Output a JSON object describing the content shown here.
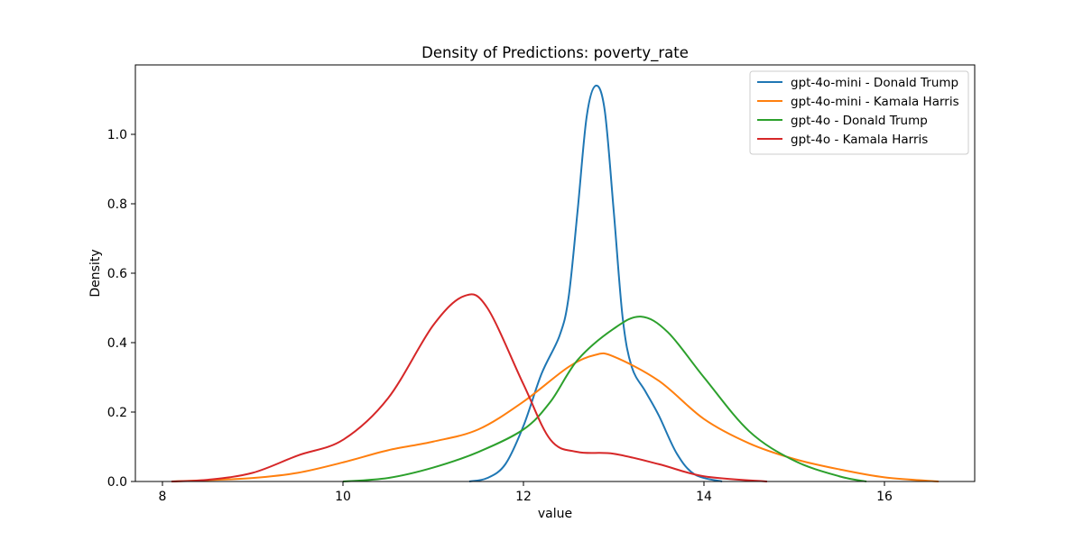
{
  "chart_data": {
    "type": "line",
    "title": "Density of Predictions: poverty_rate",
    "xlabel": "value",
    "ylabel": "Density",
    "xlim": [
      7.7,
      17.0
    ],
    "ylim": [
      0,
      1.2
    ],
    "xticks": [
      8,
      10,
      12,
      14,
      16
    ],
    "yticks": [
      0.0,
      0.2,
      0.4,
      0.6,
      0.8,
      1.0
    ],
    "xtick_labels": [
      "8",
      "10",
      "12",
      "14",
      "16"
    ],
    "ytick_labels": [
      "0.0",
      "0.2",
      "0.4",
      "0.6",
      "0.8",
      "1.0"
    ],
    "grid": false,
    "legend_position": "top-right",
    "series": [
      {
        "name": "gpt-4o-mini - Donald Trump",
        "color": "#1f77b4",
        "points": [
          [
            11.4,
            0.0
          ],
          [
            11.6,
            0.01
          ],
          [
            11.8,
            0.05
          ],
          [
            12.0,
            0.16
          ],
          [
            12.2,
            0.31
          ],
          [
            12.4,
            0.42
          ],
          [
            12.5,
            0.53
          ],
          [
            12.6,
            0.78
          ],
          [
            12.7,
            1.05
          ],
          [
            12.8,
            1.14
          ],
          [
            12.9,
            1.07
          ],
          [
            13.0,
            0.78
          ],
          [
            13.1,
            0.47
          ],
          [
            13.2,
            0.33
          ],
          [
            13.35,
            0.26
          ],
          [
            13.5,
            0.19
          ],
          [
            13.7,
            0.08
          ],
          [
            13.9,
            0.02
          ],
          [
            14.2,
            0.0
          ]
        ]
      },
      {
        "name": "gpt-4o-mini - Kamala Harris",
        "color": "#ff7f0e",
        "points": [
          [
            8.1,
            0.0
          ],
          [
            8.5,
            0.004
          ],
          [
            9.0,
            0.01
          ],
          [
            9.5,
            0.025
          ],
          [
            10.0,
            0.055
          ],
          [
            10.5,
            0.09
          ],
          [
            11.0,
            0.115
          ],
          [
            11.5,
            0.15
          ],
          [
            12.0,
            0.23
          ],
          [
            12.5,
            0.33
          ],
          [
            12.8,
            0.365
          ],
          [
            13.0,
            0.36
          ],
          [
            13.5,
            0.29
          ],
          [
            14.0,
            0.18
          ],
          [
            14.5,
            0.11
          ],
          [
            15.0,
            0.065
          ],
          [
            15.5,
            0.035
          ],
          [
            16.0,
            0.012
          ],
          [
            16.6,
            0.0
          ]
        ]
      },
      {
        "name": "gpt-4o - Donald Trump",
        "color": "#2ca02c",
        "points": [
          [
            10.0,
            0.0
          ],
          [
            10.5,
            0.01
          ],
          [
            11.0,
            0.04
          ],
          [
            11.5,
            0.085
          ],
          [
            12.0,
            0.15
          ],
          [
            12.3,
            0.23
          ],
          [
            12.6,
            0.35
          ],
          [
            13.0,
            0.44
          ],
          [
            13.3,
            0.475
          ],
          [
            13.6,
            0.43
          ],
          [
            14.0,
            0.3
          ],
          [
            14.5,
            0.145
          ],
          [
            15.0,
            0.06
          ],
          [
            15.5,
            0.015
          ],
          [
            15.8,
            0.0
          ]
        ]
      },
      {
        "name": "gpt-4o - Kamala Harris",
        "color": "#d62728",
        "points": [
          [
            8.1,
            0.0
          ],
          [
            8.5,
            0.005
          ],
          [
            9.0,
            0.025
          ],
          [
            9.5,
            0.075
          ],
          [
            10.0,
            0.12
          ],
          [
            10.5,
            0.24
          ],
          [
            11.0,
            0.45
          ],
          [
            11.35,
            0.535
          ],
          [
            11.6,
            0.5
          ],
          [
            12.0,
            0.28
          ],
          [
            12.3,
            0.12
          ],
          [
            12.6,
            0.085
          ],
          [
            13.0,
            0.08
          ],
          [
            13.5,
            0.05
          ],
          [
            14.0,
            0.015
          ],
          [
            14.7,
            0.0
          ]
        ]
      }
    ]
  }
}
